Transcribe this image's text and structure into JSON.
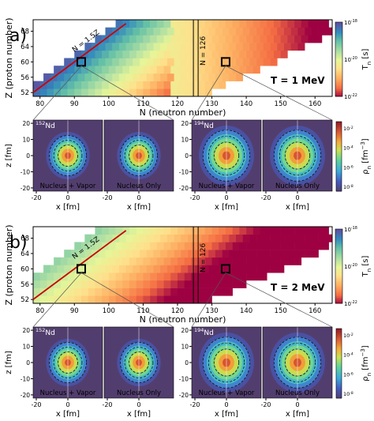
{
  "panels": [
    {
      "id": "a",
      "panel_label": "a)",
      "temperature_label": "T = 1 MeV",
      "chart_data": {
        "type": "heatmap",
        "xlabel": "N (neutron number)",
        "ylabel": "Z (proton number)",
        "xlim": [
          78,
          165
        ],
        "ylim": [
          51,
          71
        ],
        "xticks": [
          80,
          90,
          100,
          110,
          120,
          130,
          140,
          150,
          160
        ],
        "yticks": [
          52,
          56,
          60,
          64,
          68
        ],
        "colorbar": {
          "label": "T",
          "label_subscript": "n",
          "label_unit": " [s]",
          "log_range": [
            -22,
            -18
          ],
          "ticks": [
            {
              "base": "10",
              "exp": "-18",
              "log": -18
            },
            {
              "base": "10",
              "exp": "-20",
              "log": -20
            },
            {
              "base": "10",
              "exp": "-22",
              "log": -22
            }
          ]
        },
        "annotations": [
          {
            "text": "N = 1.5Z",
            "type": "diagonal-line",
            "color": "#cc0000"
          },
          {
            "text": "N = 126",
            "type": "vertical-line",
            "x": 126
          }
        ],
        "highlighted_nuclei": [
          {
            "N": 92,
            "Z": 60
          },
          {
            "N": 134,
            "Z": 60
          }
        ]
      },
      "density_maps": {
        "xlabel": "x [fm]",
        "ylabel": "z [fm]",
        "xticks": [
          -20,
          0
        ],
        "yticks": [
          20,
          10,
          0,
          -10,
          -20
        ],
        "colorbar": {
          "label": "ρ",
          "label_subscript": "n",
          "label_unit": " [fm",
          "label_sup": "−3",
          "label_close": "]",
          "ticks": [
            {
              "base": "10",
              "exp": "-2"
            },
            {
              "base": "10",
              "exp": "-4"
            },
            {
              "base": "10",
              "exp": "-6"
            },
            {
              "base": "10",
              "exp": "-8"
            }
          ]
        },
        "groups": [
          {
            "nucleus_mass": "152",
            "nucleus_symbol": "Nd",
            "left_caption": "Nucleus + Vapor",
            "right_caption": "Nucleus Only"
          },
          {
            "nucleus_mass": "194",
            "nucleus_symbol": "Nd",
            "left_caption": "Nucleus + Vapor",
            "right_caption": "Nucleus Only"
          }
        ]
      }
    },
    {
      "id": "b",
      "panel_label": "b)",
      "temperature_label": "T = 2 MeV",
      "chart_data": {
        "type": "heatmap",
        "xlabel": "N (neutron number)",
        "ylabel": "Z (proton number)",
        "xlim": [
          78,
          165
        ],
        "ylim": [
          51,
          71
        ],
        "xticks": [
          80,
          90,
          100,
          110,
          120,
          130,
          140,
          150,
          160
        ],
        "yticks": [
          52,
          56,
          60,
          64,
          68
        ],
        "colorbar": {
          "label": "T",
          "label_subscript": "n",
          "label_unit": " [s]",
          "log_range": [
            -22,
            -18
          ],
          "ticks": [
            {
              "base": "10",
              "exp": "-18",
              "log": -18
            },
            {
              "base": "10",
              "exp": "-20",
              "log": -20
            },
            {
              "base": "10",
              "exp": "-22",
              "log": -22
            }
          ]
        },
        "annotations": [
          {
            "text": "N = 1.5Z",
            "type": "diagonal-line",
            "color": "#cc0000"
          },
          {
            "text": "N = 126",
            "type": "vertical-line",
            "x": 126
          }
        ],
        "highlighted_nuclei": [
          {
            "N": 92,
            "Z": 60
          },
          {
            "N": 134,
            "Z": 60
          }
        ]
      },
      "density_maps": {
        "xlabel": "x [fm]",
        "ylabel": "z [fm]",
        "xticks": [
          -20,
          0
        ],
        "yticks": [
          20,
          10,
          0,
          -10,
          -20
        ],
        "colorbar": {
          "label": "ρ",
          "label_subscript": "n",
          "label_unit": " [fm",
          "label_sup": "−3",
          "label_close": "]",
          "ticks": [
            {
              "base": "10",
              "exp": "-2"
            },
            {
              "base": "10",
              "exp": "-4"
            },
            {
              "base": "10",
              "exp": "-6"
            },
            {
              "base": "10",
              "exp": "-8"
            }
          ]
        },
        "groups": [
          {
            "nucleus_mass": "152",
            "nucleus_symbol": "Nd",
            "left_caption": "Nucleus + Vapor",
            "right_caption": "Nucleus Only"
          },
          {
            "nucleus_mass": "194",
            "nucleus_symbol": "Nd",
            "left_caption": "Nucleus + Vapor",
            "right_caption": "Nucleus Only"
          }
        ]
      }
    }
  ]
}
